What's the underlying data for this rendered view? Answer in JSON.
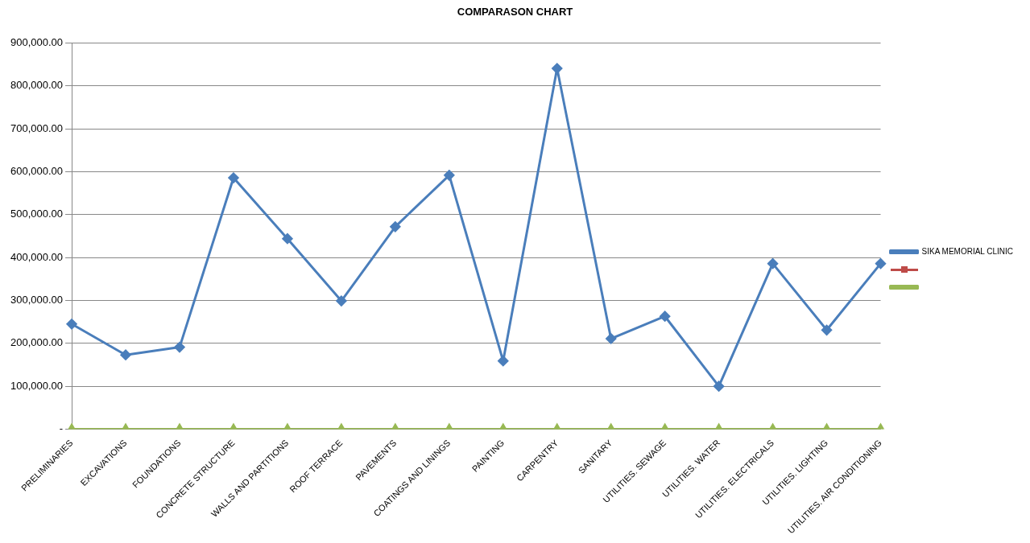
{
  "chart_data": {
    "type": "line",
    "title": "COMPARASON CHART",
    "categories": [
      "PRELIMINARIES",
      "EXCAVATIONS",
      "FOUNDATIONS",
      "CONCRETE STRUCTURE",
      "WALLS AND PARTITIONS",
      "ROOF TERRACE",
      "PAVEMENTS",
      "COATINGS AND LININGS",
      "PAINTING",
      "CARPENTRY",
      "SANITARY",
      "UTILITIES. SEWAGE",
      "UTILITIES. WATER",
      "UTILITIES. ELECTRICALS",
      "UTILITIES. LIGHTING",
      "UTILITIES. AIR CONDITIONING"
    ],
    "series": [
      {
        "name": "SIKA MEMORIAL CLINIC",
        "color": "#4a7ebb",
        "marker": "diamond",
        "values": [
          245000,
          173000,
          191000,
          586000,
          444000,
          299000,
          472000,
          592000,
          159000,
          841000,
          211000,
          263000,
          100000,
          386000,
          231000,
          386000
        ]
      },
      {
        "color": "#be4b48",
        "marker": "square",
        "values": [
          null,
          null,
          null,
          null,
          null,
          null,
          null,
          null,
          null,
          null,
          null,
          null,
          null,
          null,
          null,
          null
        ]
      },
      {
        "color": "#98b954",
        "marker": "triangle",
        "values": [
          0,
          0,
          0,
          0,
          0,
          0,
          0,
          0,
          0,
          0,
          0,
          0,
          0,
          0,
          0,
          0
        ]
      }
    ],
    "ylim": [
      0,
      900000
    ],
    "yticks": [
      {
        "value": 0,
        "label": "-"
      },
      {
        "value": 100000,
        "label": "100,000.00"
      },
      {
        "value": 200000,
        "label": "200,000.00"
      },
      {
        "value": 300000,
        "label": "300,000.00"
      },
      {
        "value": 400000,
        "label": "400,000.00"
      },
      {
        "value": 500000,
        "label": "500,000.00"
      },
      {
        "value": 600000,
        "label": "600,000.00"
      },
      {
        "value": 700000,
        "label": "700,000.00"
      },
      {
        "value": 800000,
        "label": "800,000.00"
      },
      {
        "value": 900000,
        "label": "900,000.00"
      }
    ],
    "grid": "y",
    "legend": "right",
    "line_style": "solid"
  }
}
